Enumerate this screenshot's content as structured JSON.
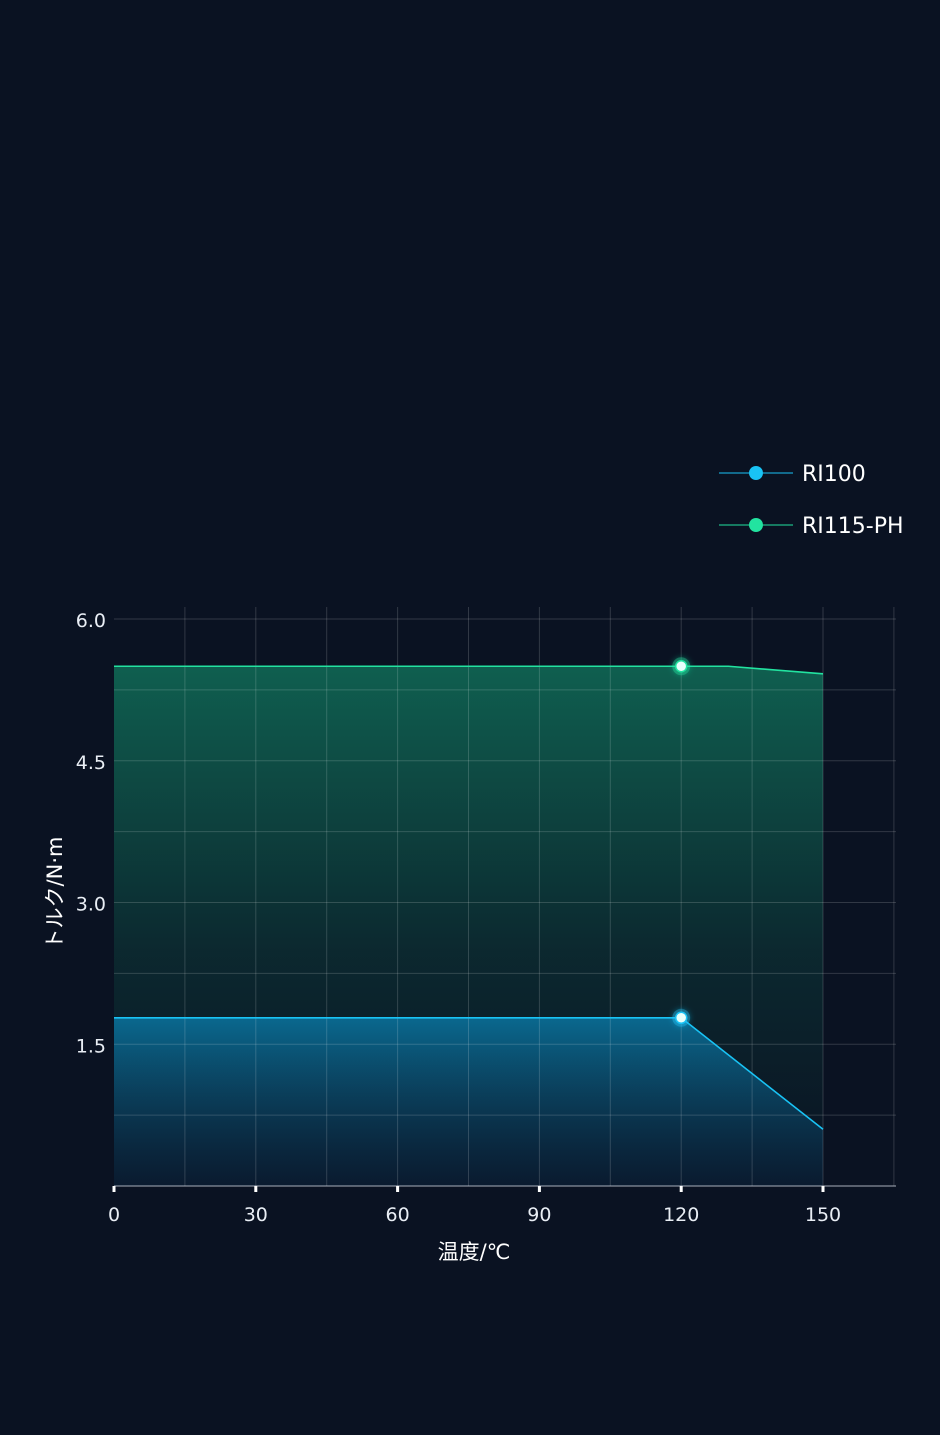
{
  "chart_data": {
    "type": "area",
    "title": "",
    "xlabel": "温度/℃",
    "ylabel": "トルク/N·m",
    "xlim": [
      0,
      165
    ],
    "ylim": [
      0,
      6.0
    ],
    "x_ticks": [
      0,
      30,
      60,
      90,
      120,
      150
    ],
    "y_ticks": [
      1.5,
      3.0,
      4.5,
      6.0
    ],
    "grid": true,
    "legend_position": "top-right",
    "series": [
      {
        "name": "RI100",
        "color": "#19c3f5",
        "points": [
          [
            0,
            1.78
          ],
          [
            120,
            1.78
          ],
          [
            150,
            0.6
          ]
        ],
        "marker": [
          120,
          1.78
        ]
      },
      {
        "name": "RI115-PH",
        "color": "#22e3a0",
        "points": [
          [
            0,
            5.5
          ],
          [
            130,
            5.5
          ],
          [
            150,
            5.42
          ]
        ],
        "marker": [
          120,
          5.5
        ]
      }
    ]
  }
}
